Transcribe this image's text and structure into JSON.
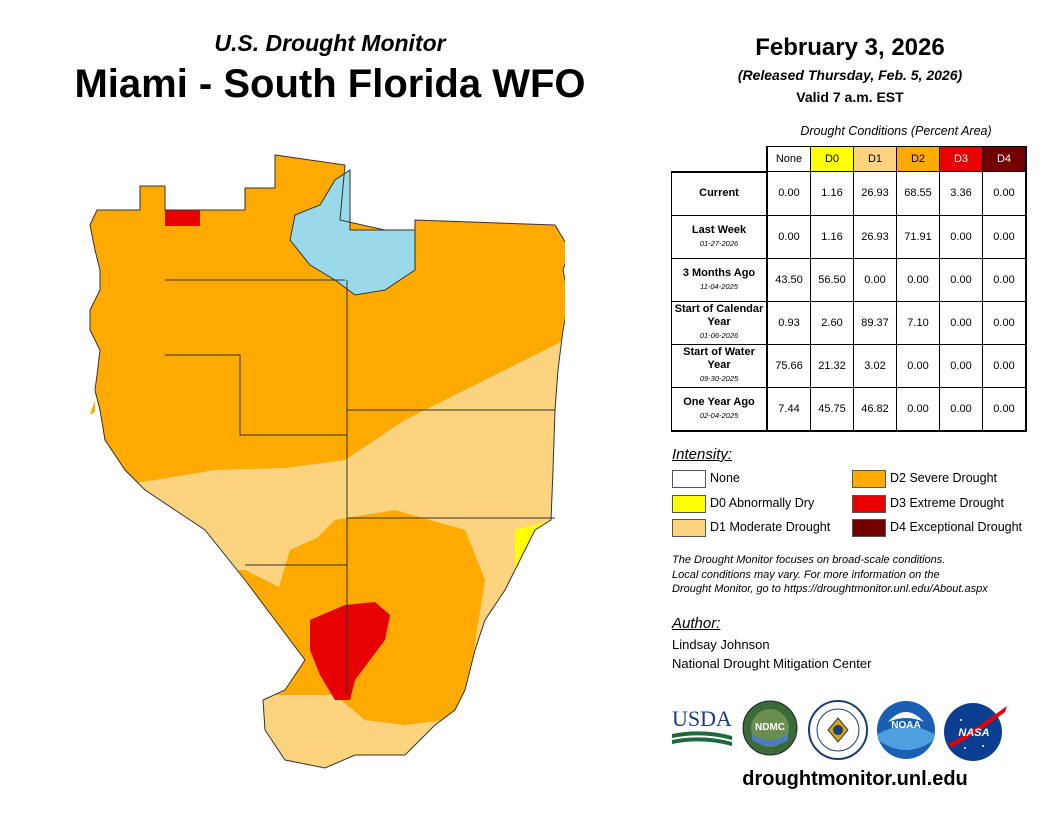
{
  "header": {
    "kicker": "U.S. Drought Monitor",
    "title": "Miami - South Florida WFO",
    "date": "February 3, 2026",
    "released": "(Released Thursday, Feb. 5, 2026)",
    "valid": "Valid 7 a.m. EST"
  },
  "table": {
    "caption": "Drought Conditions (Percent Area)",
    "columns": [
      "None",
      "D0",
      "D1",
      "D2",
      "D3",
      "D4"
    ],
    "column_colors": [
      "#ffffff",
      "#ffff00",
      "#fcd37f",
      "#ffaa00",
      "#e60000",
      "#730000"
    ],
    "rows": [
      {
        "label": "Current",
        "date": "",
        "values": [
          "0.00",
          "1.16",
          "26.93",
          "68.55",
          "3.36",
          "0.00"
        ]
      },
      {
        "label": "Last Week",
        "date": "01-27-2026",
        "values": [
          "0.00",
          "1.16",
          "26.93",
          "71.91",
          "0.00",
          "0.00"
        ]
      },
      {
        "label": "3 Months Ago",
        "date": "11-04-2025",
        "values": [
          "43.50",
          "56.50",
          "0.00",
          "0.00",
          "0.00",
          "0.00"
        ]
      },
      {
        "label": "Start of Calendar Year",
        "date": "01-06-2026",
        "values": [
          "0.93",
          "2.60",
          "89.37",
          "7.10",
          "0.00",
          "0.00"
        ]
      },
      {
        "label": "Start of Water Year",
        "date": "09-30-2025",
        "values": [
          "75.66",
          "21.32",
          "3.02",
          "0.00",
          "0.00",
          "0.00"
        ]
      },
      {
        "label": "One Year Ago",
        "date": "02-04-2025",
        "values": [
          "7.44",
          "45.75",
          "46.82",
          "0.00",
          "0.00",
          "0.00"
        ]
      }
    ]
  },
  "legend": {
    "title": "Intensity:",
    "items": [
      {
        "label": "None",
        "color": "#ffffff"
      },
      {
        "label": "D0 Abnormally Dry",
        "color": "#ffff00"
      },
      {
        "label": "D1 Moderate Drought",
        "color": "#fcd37f"
      },
      {
        "label": "D2 Severe Drought",
        "color": "#ffaa00"
      },
      {
        "label": "D3 Extreme Drought",
        "color": "#e60000"
      },
      {
        "label": "D4 Exceptional Drought",
        "color": "#730000"
      }
    ]
  },
  "note": {
    "line1": "The Drought Monitor focuses on broad-scale conditions.",
    "line2": "Local conditions may vary. For more information on the",
    "line3": "Drought Monitor, go to https://droughtmonitor.unl.edu/About.aspx"
  },
  "author": {
    "title": "Author:",
    "name": "Lindsay Johnson",
    "org": "National Drought Mitigation Center"
  },
  "logos": {
    "usda": "USDA",
    "ndmc": "NDMC",
    "noaa": "NOAA",
    "nasa": "NASA"
  },
  "footer": {
    "url": "droughtmonitor.unl.edu"
  },
  "map": {
    "colors": {
      "d1": "#fcd37f",
      "d2": "#ffaa00",
      "d3": "#e60000",
      "d0": "#ffff00",
      "water": "#99d9ea",
      "border": "#333333"
    }
  }
}
